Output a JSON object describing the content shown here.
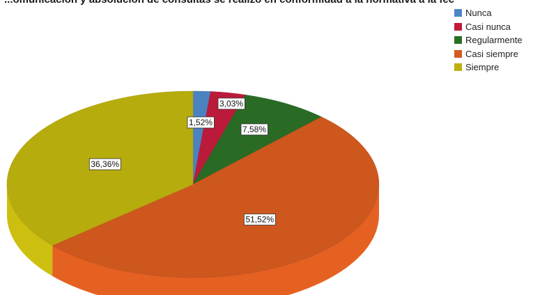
{
  "chart_data": {
    "type": "pie",
    "title": "...omunicación y absolución de consultas se realizó en conformidad a la normativa a la fec",
    "categories": [
      "Nunca",
      "Casi nunca",
      "Regularmente",
      "Casi siempre",
      "Siempre"
    ],
    "values": [
      1.52,
      3.03,
      7.58,
      51.52,
      36.36
    ],
    "value_labels": [
      "1,52%",
      "3,03%",
      "7,58%",
      "51,52%",
      "36,36%"
    ],
    "colors": [
      "#4d86c6",
      "#c21b3c",
      "#2a6e26",
      "#d45a1f",
      "#bdb10e"
    ],
    "legend_position": "top-right",
    "style": "3d-tilted"
  }
}
